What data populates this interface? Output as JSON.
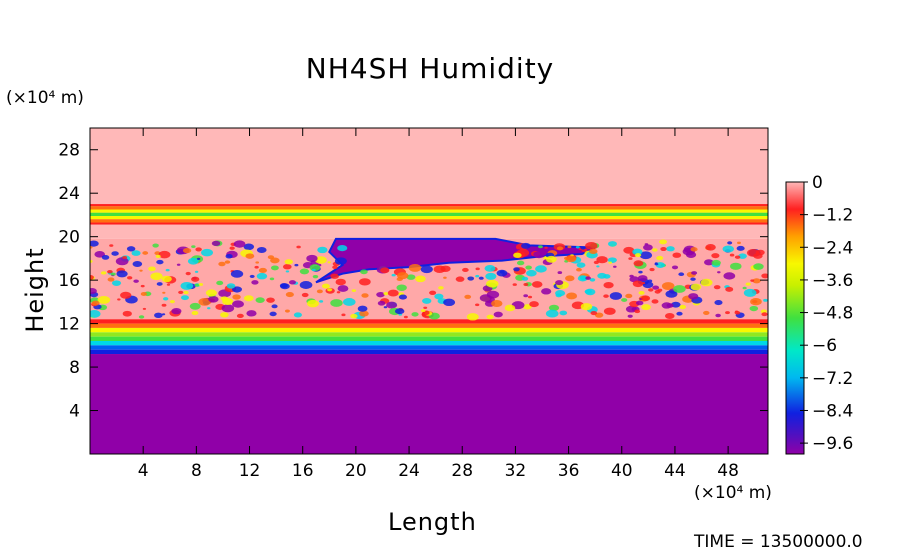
{
  "chart_data": {
    "type": "heatmap",
    "title": "NH4SH Humidity",
    "xlabel": "Length",
    "ylabel": "Height",
    "x_unit": "(×10⁴ m)",
    "y_unit": "(×10⁴ m)",
    "xlim": [
      0,
      51
    ],
    "ylim": [
      0,
      30
    ],
    "x_ticks": [
      4,
      8,
      12,
      16,
      20,
      24,
      28,
      32,
      36,
      40,
      44,
      48
    ],
    "y_ticks": [
      4,
      8,
      12,
      16,
      20,
      24,
      28
    ],
    "colorbar": {
      "min": -10,
      "max": 0,
      "ticks": [
        0,
        -1.2,
        -2.4,
        -3.6,
        -4.8,
        -6,
        -7.2,
        -8.4,
        -9.6
      ]
    },
    "time_label": "TIME = 13500000.0",
    "colors": {
      "purple": "#9000a8",
      "pink": "#ffb8b8",
      "red": "#ff2020",
      "yellow": "#f8f800",
      "green": "#40e040",
      "cyan": "#00d8e8",
      "blue": "#1020e0"
    }
  }
}
